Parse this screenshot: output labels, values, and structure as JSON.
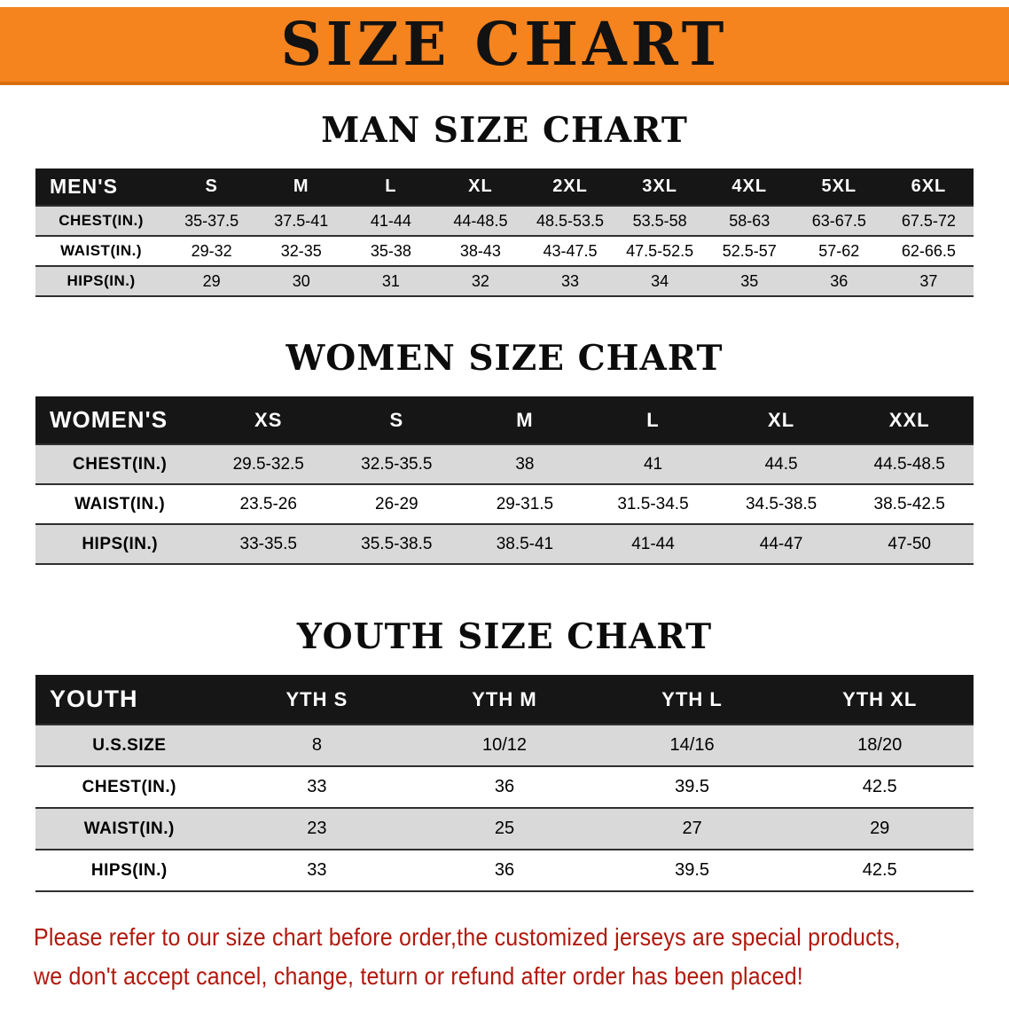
{
  "theme": {
    "banner_bg": "#f5831e",
    "bar_bg": "#161616",
    "bar_fg": "#ffffff",
    "row_shade": "#d9d9d9",
    "rule_color": "#2f2f2f",
    "footer_color": "#b1190e"
  },
  "banner": {
    "title": "SIZE CHART"
  },
  "sections": [
    {
      "heading": "MAN SIZE CHART",
      "table": {
        "header": [
          "MEN'S",
          "S",
          "M",
          "L",
          "XL",
          "2XL",
          "3XL",
          "4XL",
          "5XL",
          "6XL"
        ],
        "rows": [
          {
            "label": "CHEST(IN.)",
            "values": [
              "35-37.5",
              "37.5-41",
              "41-44",
              "44-48.5",
              "48.5-53.5",
              "53.5-58",
              "58-63",
              "63-67.5",
              "67.5-72"
            ]
          },
          {
            "label": "WAIST(IN.)",
            "values": [
              "29-32",
              "32-35",
              "35-38",
              "38-43",
              "43-47.5",
              "47.5-52.5",
              "52.5-57",
              "57-62",
              "62-66.5"
            ]
          },
          {
            "label": "HIPS(IN.)",
            "values": [
              "29",
              "30",
              "31",
              "32",
              "33",
              "34",
              "35",
              "36",
              "37"
            ]
          }
        ]
      }
    },
    {
      "heading": "WOMEN SIZE CHART",
      "table": {
        "header": [
          "WOMEN'S",
          "XS",
          "S",
          "M",
          "L",
          "XL",
          "XXL"
        ],
        "rows": [
          {
            "label": "CHEST(IN.)",
            "values": [
              "29.5-32.5",
              "32.5-35.5",
              "38",
              "41",
              "44.5",
              "44.5-48.5"
            ]
          },
          {
            "label": "WAIST(IN.)",
            "values": [
              "23.5-26",
              "26-29",
              "29-31.5",
              "31.5-34.5",
              "34.5-38.5",
              "38.5-42.5"
            ]
          },
          {
            "label": "HIPS(IN.)",
            "values": [
              "33-35.5",
              "35.5-38.5",
              "38.5-41",
              "41-44",
              "44-47",
              "47-50"
            ]
          }
        ]
      }
    },
    {
      "heading": "YOUTH SIZE CHART",
      "table": {
        "header": [
          "YOUTH",
          "YTH S",
          "YTH M",
          "YTH L",
          "YTH XL"
        ],
        "rows": [
          {
            "label": "U.S.SIZE",
            "values": [
              "8",
              "10/12",
              "14/16",
              "18/20"
            ]
          },
          {
            "label": "CHEST(IN.)",
            "values": [
              "33",
              "36",
              "39.5",
              "42.5"
            ]
          },
          {
            "label": "WAIST(IN.)",
            "values": [
              "23",
              "25",
              "27",
              "29"
            ]
          },
          {
            "label": "HIPS(IN.)",
            "values": [
              "33",
              "36",
              "39.5",
              "42.5"
            ]
          }
        ]
      }
    }
  ],
  "footer": {
    "line1": "Please refer to our size chart before order,the customized jerseys are special products,",
    "line2": "we don't accept cancel, change, teturn or refund after order has been placed!"
  }
}
